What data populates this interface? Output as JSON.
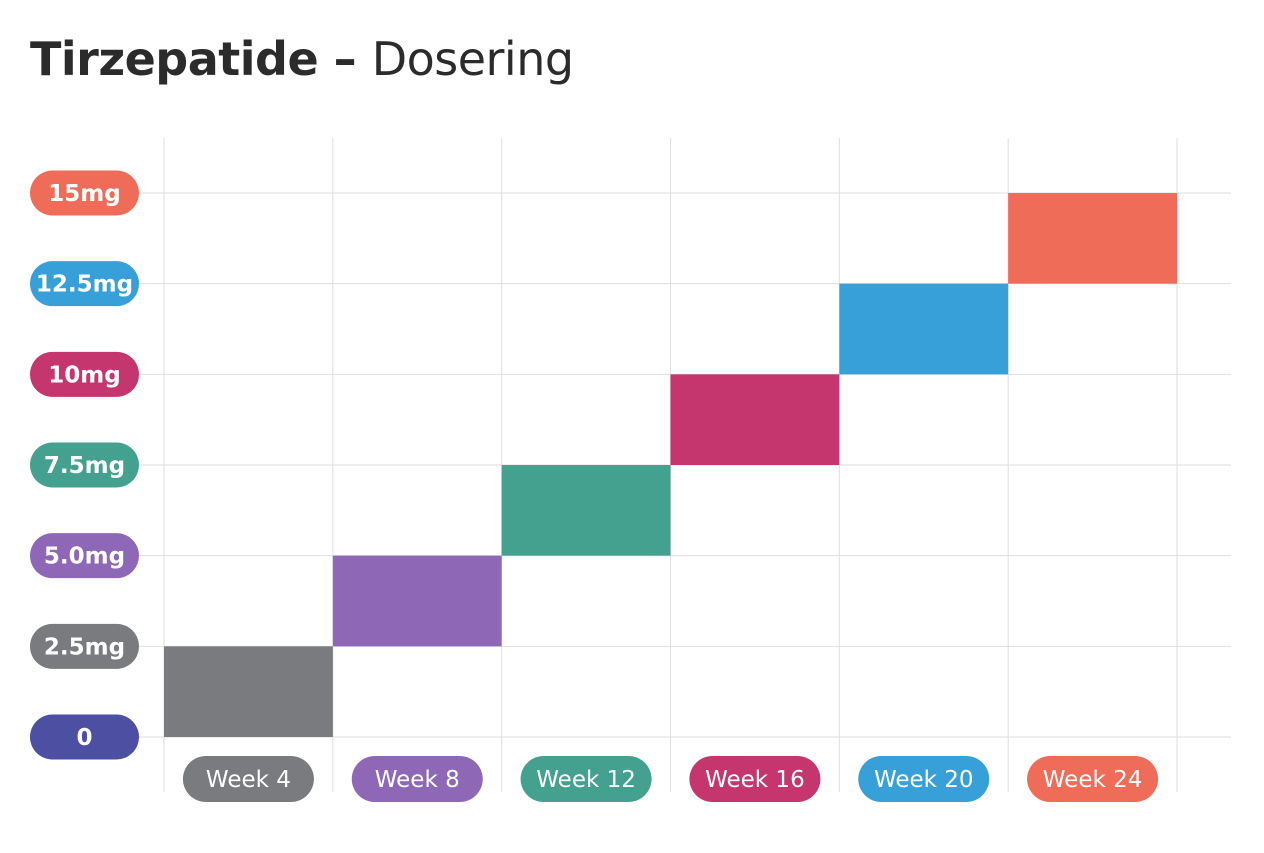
{
  "title": {
    "main": "Tirzepatide",
    "dash": " – ",
    "sub": "Dosering"
  },
  "chart_data": {
    "type": "bar",
    "title": "Tirzepatide – Dosering",
    "categories": [
      "Week 4",
      "Week 8",
      "Week 12",
      "Week 16",
      "Week 20",
      "Week 24"
    ],
    "y_ticks": [
      "0",
      "2.5mg",
      "5.0mg",
      "7.5mg",
      "10mg",
      "12.5mg",
      "15mg"
    ],
    "ylim": [
      0,
      15
    ],
    "unit": "mg",
    "steps": [
      {
        "label": "Week 4",
        "from": 0,
        "to": 2.5,
        "color": "#7a7b7e"
      },
      {
        "label": "Week 8",
        "from": 2.5,
        "to": 5.0,
        "color": "#8e68b6"
      },
      {
        "label": "Week 12",
        "from": 5.0,
        "to": 7.5,
        "color": "#44a08f"
      },
      {
        "label": "Week 16",
        "from": 7.5,
        "to": 10,
        "color": "#c4366d"
      },
      {
        "label": "Week 20",
        "from": 10,
        "to": 12.5,
        "color": "#38a0d9"
      },
      {
        "label": "Week 24",
        "from": 12.5,
        "to": 15,
        "color": "#ee6c58"
      }
    ],
    "y_tick_colors": [
      "#4d4fa3",
      "#7a7b7e",
      "#8e68b6",
      "#44a08f",
      "#c4366d",
      "#38a0d9",
      "#ee6c58"
    ],
    "grid": true
  }
}
